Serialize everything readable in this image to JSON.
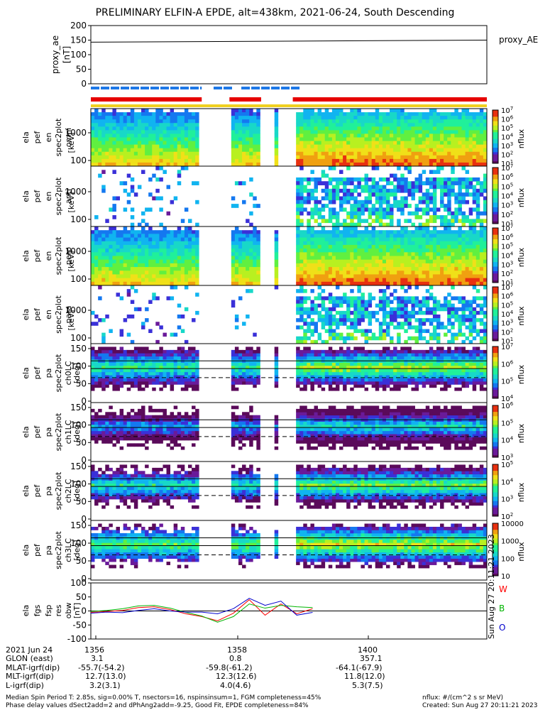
{
  "title": "PRELIMINARY ELFIN-A EPDE, alt=438km, 2021-06-24, South Descending",
  "chart_data": [
    {
      "type": "line",
      "ylabel": "proxy_ae [nT]",
      "legend": "proxy_AE",
      "ylim": [
        0,
        200
      ],
      "yticks": [
        "200",
        "150",
        "100",
        "50",
        "0"
      ],
      "series": [
        {
          "name": "proxy_AE",
          "x": [
            0,
            1
          ],
          "y": [
            143,
            150
          ]
        }
      ]
    },
    {
      "type": "heatmap",
      "ylabel": "ela pef en spec2plot omni [keV]",
      "yticks": [
        "1000",
        "100"
      ],
      "colorbar": [
        "10^7",
        "10^6",
        "10^5",
        "10^4",
        "10^3",
        "10^2",
        "10^1"
      ],
      "unit": "nflux"
    },
    {
      "type": "heatmap",
      "ylabel": "ela pef en spec2plot anti [keV]",
      "yticks": [
        "1000",
        "100"
      ],
      "colorbar": [
        "10^7",
        "10^6",
        "10^5",
        "10^4",
        "10^3",
        "10^2",
        "10^1"
      ],
      "unit": "nflux"
    },
    {
      "type": "heatmap",
      "ylabel": "ela pef en spec2plot perp [keV]",
      "yticks": [
        "1000",
        "100"
      ],
      "colorbar": [
        "10^7",
        "10^6",
        "10^5",
        "10^4",
        "10^3",
        "10^2",
        "10^1"
      ],
      "unit": "nflux"
    },
    {
      "type": "heatmap",
      "ylabel": "ela pef en spec2plot para [keV]",
      "yticks": [
        "1000",
        "100"
      ],
      "colorbar": [
        "10^7",
        "10^6",
        "10^5",
        "10^4",
        "10^3",
        "10^2",
        "10^1"
      ],
      "unit": "nflux"
    },
    {
      "type": "heatmap",
      "ylabel": "ela pef pa spec2plot ch0LC [deg]",
      "yticks": [
        "150",
        "100",
        "50",
        "0"
      ],
      "colorbar": [
        "10^7",
        "10^6",
        "10^5",
        "10^4"
      ],
      "unit": "nflux"
    },
    {
      "type": "heatmap",
      "ylabel": "ela pef pa spec2plot ch1LC [deg]",
      "yticks": [
        "150",
        "100",
        "50",
        "0"
      ],
      "colorbar": [
        "10^6",
        "10^5",
        "10^4",
        "10^3"
      ],
      "unit": "nflux"
    },
    {
      "type": "heatmap",
      "ylabel": "ela pef pa spec2plot ch2LC [deg]",
      "yticks": [
        "150",
        "100",
        "50",
        "0"
      ],
      "colorbar": [
        "10^5",
        "10^4",
        "10^3",
        "10^2"
      ],
      "unit": "nflux"
    },
    {
      "type": "heatmap",
      "ylabel": "ela pef pa spec2plot ch3LC [deg]",
      "yticks": [
        "150",
        "100",
        "50",
        "0"
      ],
      "colorbar": [
        "10000",
        "1000",
        "100",
        "10"
      ],
      "unit": "nflux"
    },
    {
      "type": "line",
      "ylabel": "ela fgs fsp res obw [nT]",
      "ylim": [
        -100,
        100
      ],
      "yticks": [
        "100",
        "50",
        "0",
        "-50",
        "-100"
      ],
      "legend": [
        "W",
        "B",
        "O"
      ],
      "series": [
        {
          "name": "W",
          "color": "#ff0000",
          "x": [
            0.0,
            0.04,
            0.08,
            0.12,
            0.16,
            0.2,
            0.24,
            0.28,
            0.32,
            0.36,
            0.4,
            0.44,
            0.48,
            0.52,
            0.56
          ],
          "y": [
            -5,
            -2,
            2,
            12,
            15,
            5,
            -10,
            -20,
            -35,
            -8,
            40,
            -15,
            25,
            -10,
            8
          ]
        },
        {
          "name": "B",
          "color": "#00b400",
          "x": [
            0.0,
            0.04,
            0.08,
            0.12,
            0.16,
            0.2,
            0.24,
            0.28,
            0.32,
            0.36,
            0.4,
            0.44,
            0.48,
            0.52,
            0.56
          ],
          "y": [
            -2,
            2,
            8,
            18,
            20,
            10,
            -5,
            -18,
            -40,
            -20,
            25,
            10,
            20,
            15,
            12
          ]
        },
        {
          "name": "O",
          "color": "#0000cc",
          "x": [
            0.0,
            0.04,
            0.08,
            0.12,
            0.16,
            0.2,
            0.24,
            0.28,
            0.32,
            0.36,
            0.4,
            0.44,
            0.48,
            0.52,
            0.56
          ],
          "y": [
            -8,
            -4,
            -6,
            2,
            8,
            0,
            -4,
            -4,
            -10,
            8,
            45,
            20,
            35,
            -15,
            -5
          ]
        }
      ]
    }
  ],
  "bars": {
    "blue": [
      [
        0,
        0.28
      ],
      [
        0.31,
        0.36
      ],
      [
        0.38,
        0.53
      ]
    ],
    "red": [
      [
        0,
        0.28
      ],
      [
        0.35,
        0.43
      ],
      [
        0.51,
        1.0
      ]
    ],
    "yellow": [
      [
        0,
        1.0
      ]
    ]
  },
  "bottom": {
    "row_labels": [
      "2021 Jun 24",
      "GLON (east)",
      "MLAT-igrf(dip)",
      "MLT-igrf(dip)",
      "L-igrf(dip)"
    ],
    "times": [
      "1356",
      "1358",
      "1400"
    ],
    "values": [
      [
        "3.1",
        "0.8",
        "357.1"
      ],
      [
        "-55.7(-54.2)",
        "-59.8(-61.2)",
        "-64.1(-67.9)"
      ],
      [
        "12.7(13.0)",
        "12.3(12.6)",
        "11.8(12.0)"
      ],
      [
        "3.2(3.1)",
        "4.0(4.6)",
        "5.3(7.5)"
      ]
    ],
    "footer_left_1": "Median Spin Period T: 2.85s, sig=0.00% T, nsectors=16, nspinsinsum=1, FGM completeness=45%",
    "footer_left_2": "Phase delay values dSect2add=2 and dPhAng2add=-9.25, Good Fit, EPDE completeness=84%",
    "footer_right_1": "nflux: #/(cm^2 s sr MeV)",
    "footer_right_2": "Created: Sun Aug 27 20:11:21 2023",
    "side_stamp": "Sun Aug 27 20:11:21 2023"
  }
}
